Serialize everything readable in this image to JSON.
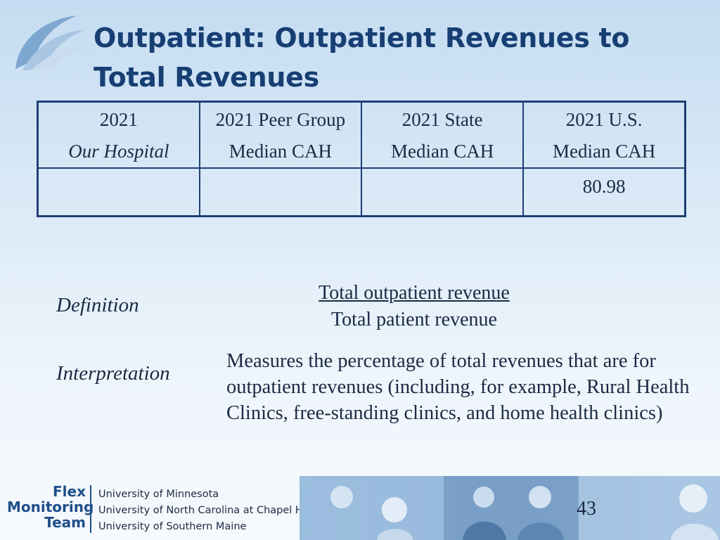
{
  "slide": {
    "title": "Outpatient:  Outpatient Revenues to Total Revenues",
    "page_number": "43"
  },
  "table": {
    "headers": [
      {
        "line1": "2021",
        "line2": "Our Hospital"
      },
      {
        "line1": "2021 Peer Group",
        "line2": "Median CAH"
      },
      {
        "line1": "2021 State",
        "line2": "Median CAH"
      },
      {
        "line1": "2021 U.S.",
        "line2": "Median CAH"
      }
    ],
    "values": [
      "",
      "",
      "",
      "80.98"
    ]
  },
  "definition": {
    "label": "Definition",
    "numerator": "Total outpatient revenue",
    "denominator": "Total patient revenue"
  },
  "interpretation": {
    "label": "Interpretation",
    "text": "Measures the percentage of total revenues that are for outpatient revenues (including, for example, Rural Health Clinics, free-standing clinics, and home health clinics)"
  },
  "footer": {
    "logo_lines": [
      "Flex",
      "Monitoring",
      "Team"
    ],
    "universities": [
      "University of Minnesota",
      "University of North Carolina at Chapel Hill",
      "University of Southern Maine"
    ]
  }
}
